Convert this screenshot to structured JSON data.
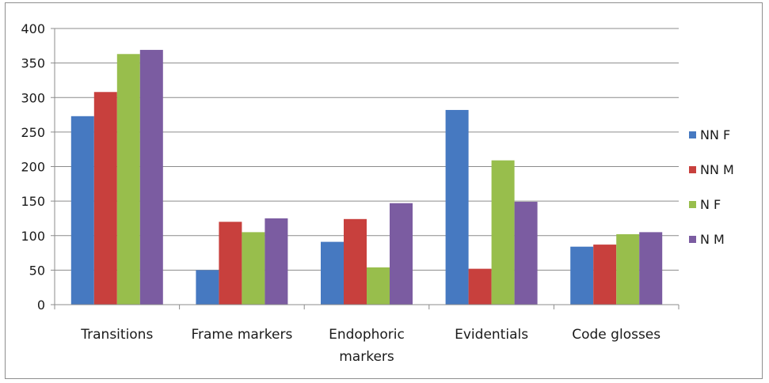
{
  "chart_data": {
    "type": "bar",
    "categories": [
      [
        "Transitions"
      ],
      [
        "Frame markers"
      ],
      [
        "Endophoric",
        "markers"
      ],
      [
        "Evidentials"
      ],
      [
        "Code glosses"
      ]
    ],
    "series": [
      {
        "name": "NN F",
        "color": "#4679c1",
        "values": [
          273,
          50,
          91,
          282,
          84
        ]
      },
      {
        "name": "NN M",
        "color": "#c8403d",
        "values": [
          308,
          120,
          124,
          52,
          87
        ]
      },
      {
        "name": "N F",
        "color": "#98be4c",
        "values": [
          363,
          105,
          54,
          209,
          102
        ]
      },
      {
        "name": "N M",
        "color": "#7b5ca1",
        "values": [
          369,
          125,
          147,
          149,
          105
        ]
      }
    ],
    "ylim": [
      0,
      400
    ],
    "yticks": [
      0,
      50,
      100,
      150,
      200,
      250,
      300,
      350,
      400
    ],
    "grid": true,
    "legend": "right",
    "title": "",
    "xlabel": "",
    "ylabel": ""
  }
}
